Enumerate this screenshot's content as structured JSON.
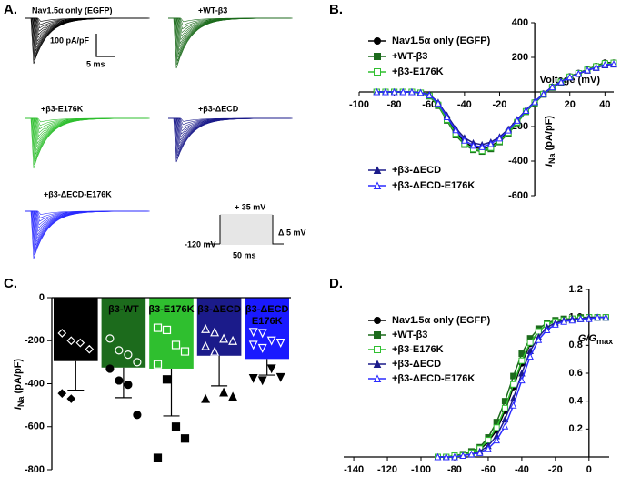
{
  "panel_labels": [
    "A.",
    "B.",
    "C.",
    "D."
  ],
  "panel_a": {
    "traces": [
      "Nav1.5α only (EGFP)",
      "+WT-β3",
      "+β3-E176K",
      "+β3-ΔECD",
      "+β3-ΔECD-E176K"
    ],
    "scale_current": "100 pA/pF",
    "scale_time": "5 ms",
    "protocol": {
      "top": "+ 35 mV",
      "bottom": "-120 mV",
      "duration": "50 ms",
      "step": "Δ 5 mV"
    }
  },
  "chart_data": [
    {
      "type": "line",
      "xlabel": "Voltage (mV)",
      "ylabel_parts": [
        "I",
        "Na",
        " (pA/pF)"
      ],
      "x": [
        -90,
        -85,
        -80,
        -75,
        -70,
        -65,
        -60,
        -55,
        -50,
        -45,
        -40,
        -35,
        -30,
        -25,
        -20,
        -15,
        -10,
        -5,
        0,
        5,
        10,
        15,
        20,
        25,
        30,
        35,
        40,
        45
      ],
      "xlim": [
        -100,
        45
      ],
      "ylim": [
        -600,
        400
      ],
      "xticks": [
        -100,
        -80,
        -60,
        -40,
        -20,
        0,
        20,
        40
      ],
      "yticks": [
        400,
        200,
        -200,
        -400,
        -600
      ],
      "series": [
        {
          "name": "Nav1.5α only (EGFP)",
          "color": "#000000",
          "marker": "circle",
          "values": [
            0,
            0,
            0,
            0,
            0,
            -5,
            -20,
            -70,
            -150,
            -230,
            -290,
            -320,
            -330,
            -315,
            -280,
            -230,
            -170,
            -110,
            -60,
            -10,
            30,
            60,
            90,
            110,
            130,
            150,
            170,
            170
          ]
        },
        {
          "name": "+WT-β3",
          "color": "#1c6b1c",
          "marker": "square",
          "values": [
            0,
            0,
            0,
            0,
            0,
            -5,
            -25,
            -80,
            -165,
            -250,
            -305,
            -335,
            -345,
            -330,
            -290,
            -240,
            -180,
            -115,
            -65,
            -15,
            25,
            55,
            85,
            105,
            125,
            145,
            160,
            165
          ]
        },
        {
          "name": "+β3-E176K",
          "color": "#2fbf2f",
          "marker": "square-open",
          "values": [
            0,
            0,
            0,
            0,
            0,
            -5,
            -22,
            -75,
            -160,
            -240,
            -300,
            -330,
            -340,
            -322,
            -285,
            -235,
            -175,
            -112,
            -62,
            -12,
            28,
            58,
            88,
            108,
            128,
            148,
            165,
            168
          ]
        },
        {
          "name": "+β3-ΔECD",
          "color": "#1b1b8a",
          "marker": "triangle",
          "values": [
            0,
            0,
            0,
            0,
            0,
            -4,
            -15,
            -60,
            -135,
            -210,
            -265,
            -295,
            -305,
            -290,
            -260,
            -215,
            -160,
            -105,
            -55,
            -10,
            30,
            60,
            85,
            105,
            125,
            140,
            155,
            160
          ]
        },
        {
          "name": "+β3-ΔECD-E176K",
          "color": "#2b2bff",
          "marker": "triangle-open",
          "values": [
            0,
            0,
            0,
            0,
            0,
            -4,
            -18,
            -65,
            -145,
            -220,
            -280,
            -310,
            -318,
            -300,
            -268,
            -222,
            -165,
            -108,
            -58,
            -12,
            28,
            58,
            86,
            106,
            126,
            142,
            158,
            162
          ]
        }
      ]
    },
    {
      "type": "bar",
      "ylabel_parts": [
        "I",
        "Na",
        " (pA/pF)"
      ],
      "categories": [
        [
          "EGFP"
        ],
        [
          "β3-WT"
        ],
        [
          "β3-E176K"
        ],
        [
          "β3-ΔECD"
        ],
        [
          "β3-ΔECD",
          "E176K"
        ]
      ],
      "values": [
        -295,
        -325,
        -330,
        -270,
        -285
      ],
      "errors": [
        135,
        140,
        220,
        140,
        75
      ],
      "colors": [
        "#000000",
        "#1c6b1c",
        "#2fbf2f",
        "#1b1b8a",
        "#1a1aff"
      ],
      "markers": [
        "diamond",
        "circle",
        "square",
        "triangle",
        "triangle-down"
      ],
      "points": [
        [
          -165,
          -200,
          -210,
          -240,
          -445,
          -470
        ],
        [
          -190,
          -245,
          -265,
          -300,
          -330,
          -385,
          -405,
          -545
        ],
        [
          -140,
          -150,
          -220,
          -250,
          -310,
          -380,
          -600,
          -655,
          -745
        ],
        [
          -145,
          -160,
          -190,
          -200,
          -225,
          -250,
          -440,
          -460,
          -470
        ],
        [
          -160,
          -165,
          -200,
          -210,
          -220,
          -235,
          -330,
          -370,
          -375,
          -385
        ]
      ],
      "ylim": [
        -800,
        0
      ],
      "yticks": [
        0,
        -200,
        -400,
        -600,
        -800
      ]
    },
    {
      "type": "line",
      "ylabel_parts": [
        "G/G",
        "max"
      ],
      "x": [
        -90,
        -85,
        -80,
        -75,
        -70,
        -65,
        -60,
        -55,
        -50,
        -45,
        -40,
        -35,
        -30,
        -25,
        -20,
        -15,
        -10,
        -5,
        0,
        5,
        10
      ],
      "xlim": [
        -146,
        12
      ],
      "ylim": [
        0,
        1.2
      ],
      "xticks": [
        -140,
        -120,
        -100,
        -80,
        -60,
        -40,
        -20,
        0
      ],
      "yticks": [
        0.2,
        0.4,
        0.6,
        0.8,
        {
          "value": 1,
          "label": "1.0"
        },
        1.2
      ],
      "series": [
        {
          "name": "Nav1.5α only (EGFP)",
          "color": "#000000",
          "marker": "circle",
          "values": [
            0,
            0,
            0.01,
            0.01,
            0.03,
            0.05,
            0.11,
            0.19,
            0.33,
            0.5,
            0.67,
            0.81,
            0.9,
            0.95,
            0.97,
            0.98,
            0.99,
            0.99,
            1,
            1,
            1
          ]
        },
        {
          "name": "+WT-β3",
          "color": "#1c6b1c",
          "marker": "square",
          "values": [
            0,
            0,
            0.01,
            0.02,
            0.04,
            0.07,
            0.14,
            0.25,
            0.4,
            0.58,
            0.74,
            0.85,
            0.92,
            0.96,
            0.98,
            0.99,
            0.99,
            1,
            1,
            1,
            1
          ]
        },
        {
          "name": "+β3-E176K",
          "color": "#2fbf2f",
          "marker": "square-open",
          "values": [
            0,
            0,
            0.01,
            0.01,
            0.03,
            0.06,
            0.12,
            0.21,
            0.35,
            0.52,
            0.69,
            0.82,
            0.9,
            0.95,
            0.97,
            0.98,
            0.99,
            0.99,
            1,
            1,
            1
          ]
        },
        {
          "name": "+β3-ΔECD",
          "color": "#1b1b8a",
          "marker": "triangle",
          "values": [
            0,
            0,
            0,
            0.01,
            0.02,
            0.04,
            0.08,
            0.15,
            0.27,
            0.42,
            0.6,
            0.76,
            0.86,
            0.93,
            0.96,
            0.98,
            0.99,
            0.99,
            1,
            1,
            1
          ]
        },
        {
          "name": "+β3-ΔECD-E176K",
          "color": "#2b2bff",
          "marker": "triangle-open",
          "values": [
            0,
            0,
            0,
            0.01,
            0.02,
            0.03,
            0.06,
            0.12,
            0.22,
            0.37,
            0.55,
            0.72,
            0.84,
            0.91,
            0.95,
            0.97,
            0.98,
            0.99,
            0.99,
            1,
            1
          ]
        }
      ]
    }
  ]
}
